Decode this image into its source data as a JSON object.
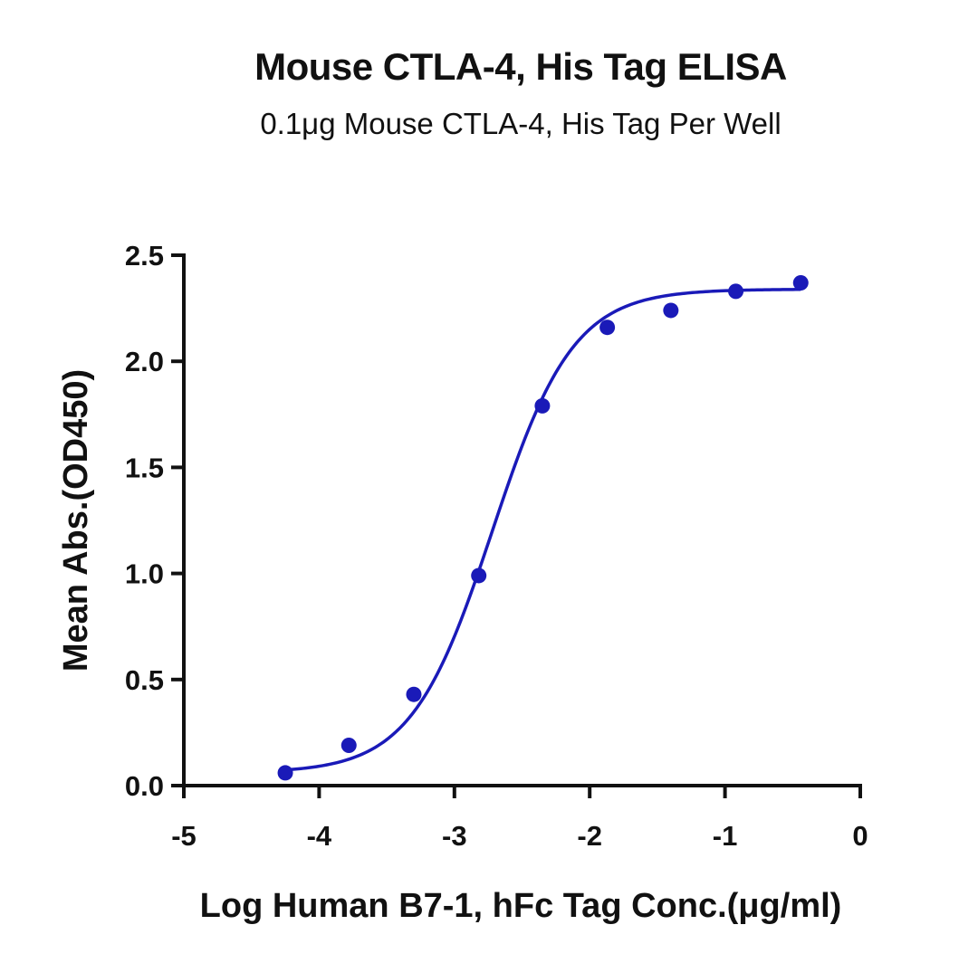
{
  "chart_data": {
    "type": "scatter",
    "title": "Mouse CTLA-4, His Tag ELISA",
    "subtitle": "0.1μg Mouse CTLA-4, His Tag Per Well",
    "xlabel": "Log Human B7-1, hFc Tag Conc.(μg/ml)",
    "ylabel": "Mean Abs.(OD450)",
    "xlim": [
      -5,
      0
    ],
    "ylim": [
      0,
      2.5
    ],
    "x_ticks": [
      -5,
      -4,
      -3,
      -2,
      -1,
      0
    ],
    "x_tick_labels": [
      "-5",
      "-4",
      "-3",
      "-2",
      "-1",
      "0"
    ],
    "y_ticks": [
      0.0,
      0.5,
      1.0,
      1.5,
      2.0,
      2.5
    ],
    "y_tick_labels": [
      "0.0",
      "0.5",
      "1.0",
      "1.5",
      "2.0",
      "2.5"
    ],
    "grid": false,
    "color": "#1a1ab8",
    "series": [
      {
        "x": [
          -4.25,
          -3.78,
          -3.3,
          -2.82,
          -2.35,
          -1.87,
          -1.4,
          -0.92,
          -0.44
        ],
        "y": [
          0.06,
          0.19,
          0.43,
          0.99,
          1.79,
          2.16,
          2.24,
          2.33,
          2.37
        ]
      }
    ],
    "fit_curve": {
      "model": "4PL",
      "bottom": 0.06,
      "top": 2.34,
      "log_ec50": -2.72,
      "hill_slope": 1.45,
      "x_range": [
        -4.25,
        -0.44
      ]
    }
  }
}
